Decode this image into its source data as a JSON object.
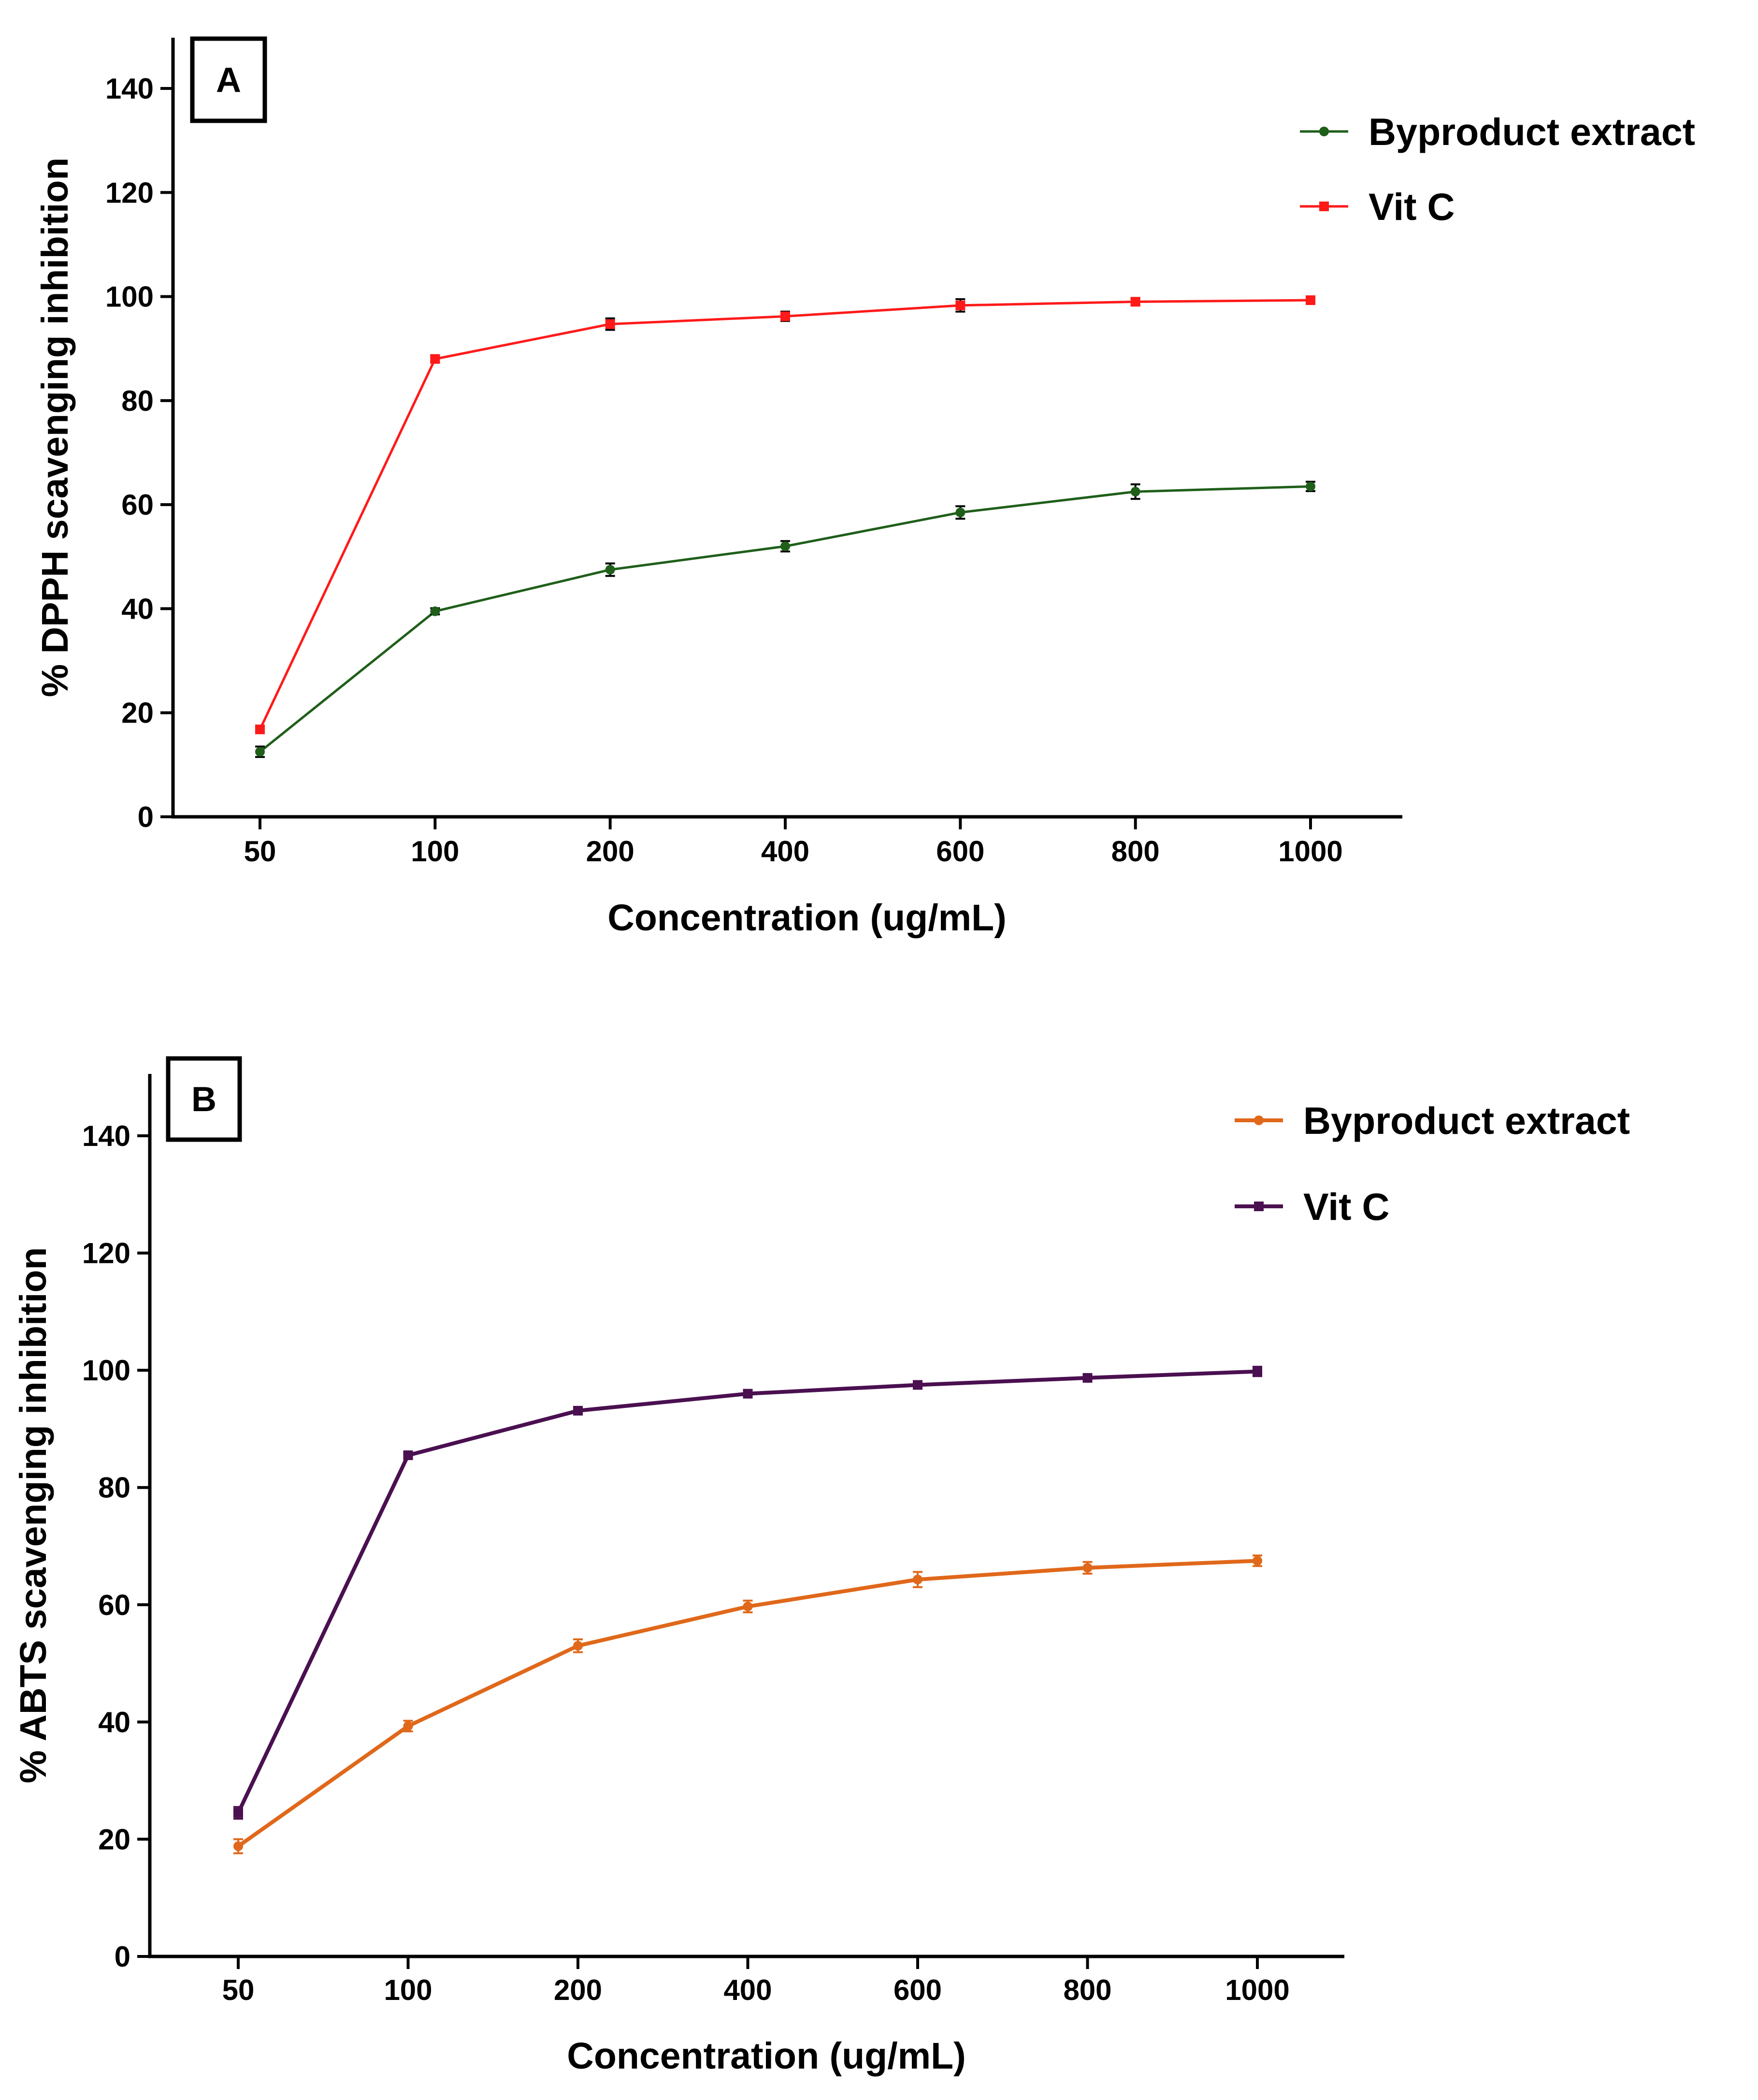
{
  "chart_data": [
    {
      "type": "line",
      "panel_label": "A",
      "categories": [
        "50",
        "100",
        "200",
        "400",
        "600",
        "800",
        "1000"
      ],
      "xlabel": "Concentration (ug/mL)",
      "ylabel": "% DPPH scavenging inhibition",
      "ylim": [
        0,
        150
      ],
      "yticks": [
        0,
        20,
        40,
        60,
        80,
        100,
        120,
        140
      ],
      "grid": false,
      "legend_position": "top-right",
      "series": [
        {
          "name": "Byproduct extract",
          "color": "#1f5f1a",
          "marker": "circle",
          "values": [
            12.5,
            39.5,
            47.5,
            52,
            58.5,
            62.5,
            63.5
          ],
          "errors": [
            1,
            0.6,
            1.2,
            1,
            1.2,
            1.4,
            0.9
          ]
        },
        {
          "name": "Vit C",
          "color": "#ff1a1a",
          "marker": "square",
          "values": [
            16.8,
            88,
            94.7,
            96.2,
            98.3,
            99,
            99.3
          ],
          "errors": [
            0.5,
            0.6,
            1.1,
            0.9,
            1.2,
            0.7,
            0.6
          ]
        }
      ]
    },
    {
      "type": "line",
      "panel_label": "B",
      "categories": [
        "50",
        "100",
        "200",
        "400",
        "600",
        "800",
        "1000"
      ],
      "xlabel": "Concentration (ug/mL)",
      "ylabel": "% ABTS scavenging  inhibition",
      "ylim": [
        0,
        150
      ],
      "yticks": [
        0,
        20,
        40,
        60,
        80,
        100,
        120,
        140
      ],
      "grid": false,
      "legend_position": "top-right",
      "series": [
        {
          "name": "Byproduct extract",
          "color": "#e0681a",
          "marker": "circle",
          "values": [
            18.8,
            39.3,
            53,
            59.7,
            64.3,
            66.3,
            67.5
          ],
          "errors": [
            1.2,
            0.9,
            1.1,
            1,
            1.3,
            1,
            0.9
          ]
        },
        {
          "name": "Vit C",
          "color": "#4a1050",
          "marker": "square",
          "values": [
            24.5,
            85.5,
            93.1,
            96,
            97.5,
            98.7,
            99.8
          ],
          "errors": [
            1,
            0.5,
            0.4,
            0.4,
            0.4,
            0.4,
            0.8
          ]
        }
      ]
    }
  ]
}
